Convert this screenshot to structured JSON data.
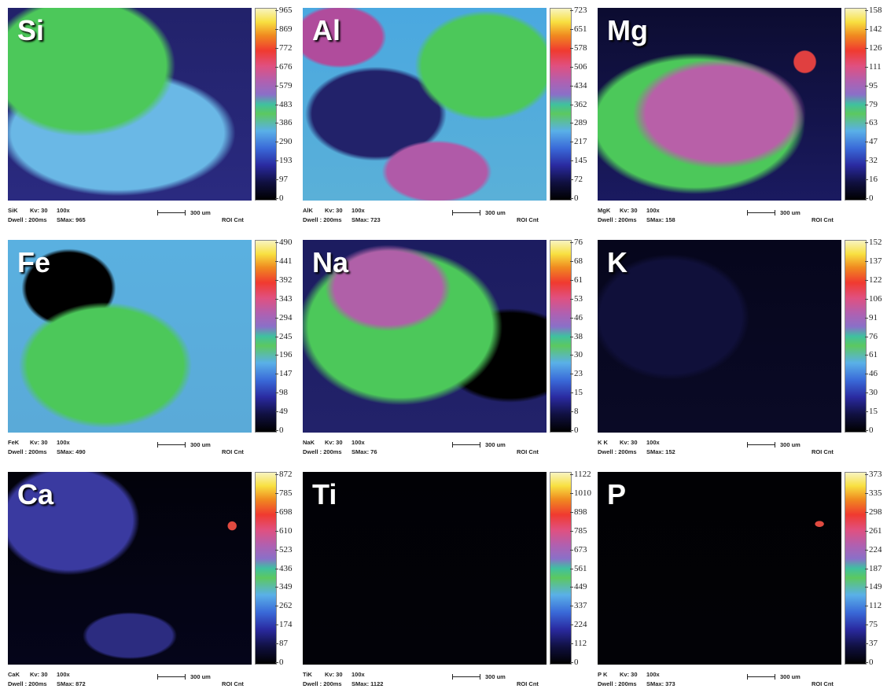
{
  "panels": [
    {
      "element": "Si",
      "ticks": [
        965,
        869,
        772,
        676,
        579,
        483,
        386,
        290,
        193,
        97,
        0
      ],
      "footer": {
        "signal": "SiK",
        "kv": "Kv: 30",
        "mag": "100x",
        "dwell": "Dwell : 200ms",
        "smax": "SMax: 965",
        "scale": "300 um",
        "roi": "ROI Cnt"
      }
    },
    {
      "element": "Al",
      "ticks": [
        723,
        651,
        578,
        506,
        434,
        362,
        289,
        217,
        145,
        72,
        0
      ],
      "footer": {
        "signal": "AlK",
        "kv": "Kv: 30",
        "mag": "100x",
        "dwell": "Dwell : 200ms",
        "smax": "SMax: 723",
        "scale": "300 um",
        "roi": "ROI Cnt"
      }
    },
    {
      "element": "Mg",
      "ticks": [
        158,
        142,
        126,
        111,
        95,
        79,
        63,
        47,
        32,
        16,
        0
      ],
      "footer": {
        "signal": "MgK",
        "kv": "Kv: 30",
        "mag": "100x",
        "dwell": "Dwell : 200ms",
        "smax": "SMax: 158",
        "scale": "300 um",
        "roi": "ROI Cnt"
      }
    },
    {
      "element": "Fe",
      "ticks": [
        490,
        441,
        392,
        343,
        294,
        245,
        196,
        147,
        98,
        49,
        0
      ],
      "footer": {
        "signal": "FeK",
        "kv": "Kv: 30",
        "mag": "100x",
        "dwell": "Dwell : 200ms",
        "smax": "SMax: 490",
        "scale": "300 um",
        "roi": "ROI Cnt"
      }
    },
    {
      "element": "Na",
      "ticks": [
        76,
        68,
        61,
        53,
        46,
        38,
        30,
        23,
        15,
        8,
        0
      ],
      "footer": {
        "signal": "NaK",
        "kv": "Kv: 30",
        "mag": "100x",
        "dwell": "Dwell : 200ms",
        "smax": "SMax: 76",
        "scale": "300 um",
        "roi": "ROI Cnt"
      }
    },
    {
      "element": "K",
      "ticks": [
        152,
        137,
        122,
        106,
        91,
        76,
        61,
        46,
        30,
        15,
        0
      ],
      "footer": {
        "signal": "K K",
        "kv": "Kv: 30",
        "mag": "100x",
        "dwell": "Dwell : 200ms",
        "smax": "SMax: 152",
        "scale": "300 um",
        "roi": "ROI Cnt"
      }
    },
    {
      "element": "Ca",
      "ticks": [
        872,
        785,
        698,
        610,
        523,
        436,
        349,
        262,
        174,
        87,
        0
      ],
      "footer": {
        "signal": "CaK",
        "kv": "Kv: 30",
        "mag": "100x",
        "dwell": "Dwell : 200ms",
        "smax": "SMax: 872",
        "scale": "300 um",
        "roi": "ROI Cnt"
      }
    },
    {
      "element": "Ti",
      "ticks": [
        1122,
        1010,
        898,
        785,
        673,
        561,
        449,
        337,
        224,
        112,
        0
      ],
      "footer": {
        "signal": "TiK",
        "kv": "Kv: 30",
        "mag": "100x",
        "dwell": "Dwell : 200ms",
        "smax": "SMax: 1122",
        "scale": "300 um",
        "roi": "ROI Cnt"
      }
    },
    {
      "element": "P",
      "ticks": [
        373,
        335,
        298,
        261,
        224,
        187,
        149,
        112,
        75,
        37,
        0
      ],
      "footer": {
        "signal": "P K",
        "kv": "Kv: 30",
        "mag": "100x",
        "dwell": "Dwell : 200ms",
        "smax": "SMax: 373",
        "scale": "300 um",
        "roi": "ROI Cnt"
      }
    }
  ]
}
